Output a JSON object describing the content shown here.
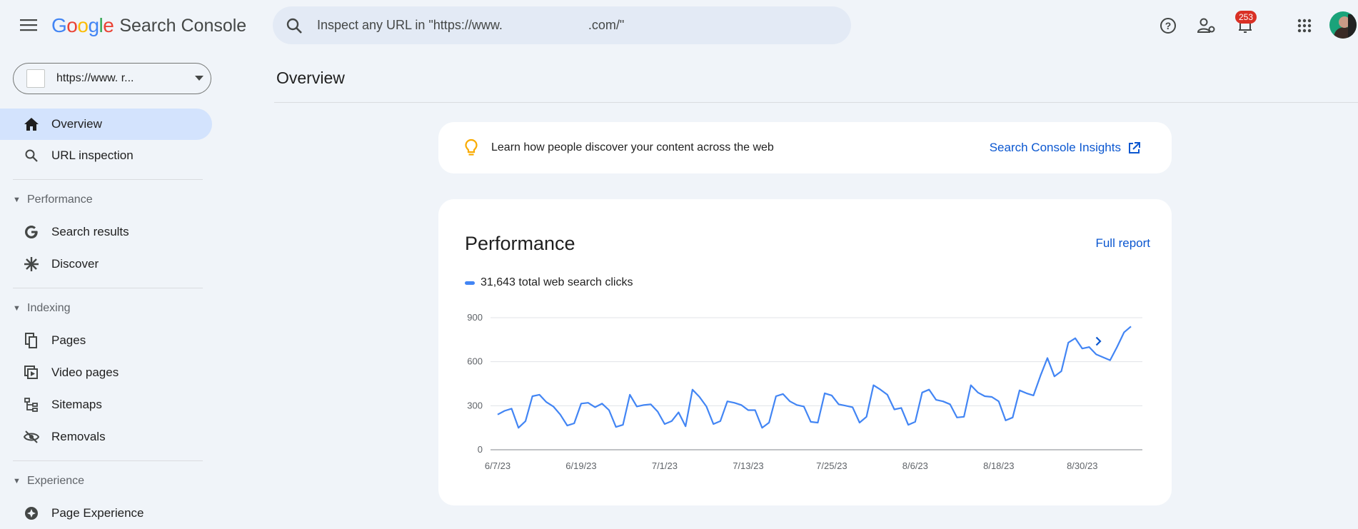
{
  "header": {
    "logo_word": "Google",
    "product": "Search Console",
    "search_placeholder": "Inspect any URL in \"https://www.                        .com/\"",
    "notification_count": "253"
  },
  "icons": {
    "menu": "menu-icon",
    "search": "search-icon",
    "help": "help-icon",
    "users": "manage-users-icon",
    "bell": "bell-icon",
    "apps": "apps-grid-icon",
    "home": "home-icon",
    "magnifier": "search-icon",
    "google_g": "google-g-icon",
    "discover": "asterisk-icon",
    "pages": "pages-icon",
    "video": "video-pages-icon",
    "sitemaps": "sitemap-icon",
    "removals": "eye-off-icon",
    "page_experience": "page-experience-icon",
    "bulb": "lightbulb-icon",
    "external": "open-in-new-icon",
    "chevron": "chevron-right-icon"
  },
  "colors": {
    "accent": "#0b57d0",
    "series": "#4285f4",
    "bulb": "#f9ab00",
    "badge": "#d93025",
    "active_nav": "#d3e3fd"
  },
  "property": {
    "url": "https://www.        r..."
  },
  "sidebar": {
    "overview": "Overview",
    "url_inspection": "URL inspection",
    "performance_section": "Performance",
    "search_results": "Search results",
    "discover": "Discover",
    "indexing_section": "Indexing",
    "pages": "Pages",
    "video_pages": "Video pages",
    "sitemaps": "Sitemaps",
    "removals": "Removals",
    "experience_section": "Experience",
    "page_experience": "Page Experience"
  },
  "main": {
    "page_title": "Overview",
    "tip_text": "Learn how people discover your content across the web",
    "tip_link": "Search Console Insights",
    "performance_title": "Performance",
    "full_report": "Full report",
    "legend": "31,643 total web search clicks"
  },
  "chart_data": {
    "type": "line",
    "title": "",
    "xlabel": "",
    "ylabel": "",
    "ylim": [
      0,
      900
    ],
    "yticks": [
      0,
      300,
      600,
      900
    ],
    "xtick_labels": [
      "6/7/23",
      "6/19/23",
      "7/1/23",
      "7/13/23",
      "7/25/23",
      "8/6/23",
      "8/18/23",
      "8/30/23"
    ],
    "xtick_index": [
      0,
      12,
      24,
      36,
      48,
      60,
      72,
      84
    ],
    "start_label": "6/7/23",
    "grid": true,
    "series": [
      {
        "name": "31,643 total web search clicks",
        "color": "#4285f4",
        "values": [
          240,
          265,
          280,
          150,
          195,
          365,
          375,
          325,
          295,
          240,
          165,
          180,
          315,
          320,
          290,
          315,
          270,
          155,
          170,
          375,
          295,
          305,
          310,
          260,
          175,
          195,
          255,
          160,
          410,
          360,
          295,
          175,
          195,
          330,
          320,
          305,
          270,
          270,
          150,
          185,
          365,
          380,
          330,
          305,
          295,
          190,
          185,
          385,
          370,
          310,
          300,
          290,
          185,
          225,
          440,
          410,
          375,
          275,
          285,
          170,
          190,
          390,
          410,
          340,
          330,
          310,
          220,
          225,
          440,
          390,
          365,
          360,
          330,
          200,
          220,
          405,
          385,
          370,
          505,
          625,
          500,
          535,
          730,
          760,
          690,
          700,
          650,
          630,
          610,
          700,
          800,
          840
        ]
      }
    ]
  }
}
